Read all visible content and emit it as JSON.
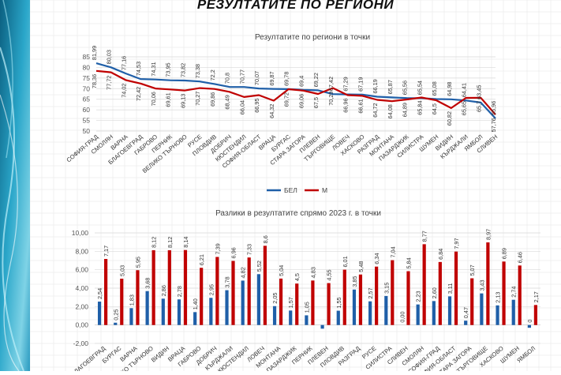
{
  "page": {
    "title": "РЕЗУЛТАТИТЕ ПО РЕГИОНИ"
  },
  "colors": {
    "bel": "#1f5fa8",
    "m": "#c00000",
    "panel_dark": "#0a6a8a",
    "panel_light": "#5fc6de"
  },
  "chart_data": [
    {
      "type": "line",
      "title": "Резултатите по региони в точки",
      "xlabel": "",
      "ylabel": "",
      "ylim": [
        50,
        85
      ],
      "yticks": [
        50,
        55,
        60,
        65,
        70,
        75,
        80,
        85
      ],
      "grid": true,
      "legend": "bottom",
      "categories": [
        "СОФИЯ-ГРАД",
        "СМОЛЯН",
        "ВАРНА",
        "БЛАГОЕВГРАД",
        "ГАБРОВО",
        "ПЕРНИК",
        "ВЕЛИКО ТЪРНОВО",
        "РУСЕ",
        "ПЛОВДИВ",
        "ДОБРИЧ",
        "КЮСТЕНДИЛ",
        "СОФИЯ-ОБЛАСТ",
        "ВРАЦА",
        "БУРГАС",
        "СТАРА ЗАГОРА",
        "ПЛЕВЕН",
        "ТЪРГОВИЩЕ",
        "ЛОВЕЧ",
        "ХАСКОВО",
        "РАЗГРАД",
        "МОНТАНА",
        "ПАЗАРДЖИК",
        "СИЛИСТРА",
        "ШУМЕН",
        "ВИДИН",
        "КЪРДЖАЛИ",
        "ЯМБОЛ",
        "СЛИВЕН"
      ],
      "series": [
        {
          "name": "БЕЛ",
          "values": [
            81.99,
            80.03,
            77.16,
            74.53,
            74.31,
            73.95,
            73.82,
            73.38,
            72.2,
            70.8,
            70.77,
            70.07,
            69.87,
            69.78,
            69.4,
            69.22,
            67.42,
            67.29,
            67.19,
            66.19,
            65.87,
            65.56,
            65.54,
            65.08,
            64.98,
            64.41,
            63.45,
            55.96
          ]
        },
        {
          "name": "М",
          "values": [
            78.36,
            77.72,
            74.02,
            72.42,
            70.06,
            69.61,
            69.13,
            70.27,
            69.86,
            68.49,
            66.04,
            66.95,
            64.32,
            69.72,
            69.06,
            67.5,
            70.29,
            66.96,
            66.61,
            64.72,
            64.08,
            64.89,
            65.84,
            64.5,
            60.82,
            65.65,
            65.7,
            57.76
          ]
        }
      ]
    },
    {
      "type": "bar",
      "title": "Разлики в резултатите спрямо 2023 г. в точки",
      "xlabel": "",
      "ylabel": "",
      "ylim": [
        -2,
        10
      ],
      "yticks": [
        "-2,00",
        "0,00",
        "2,00",
        "4,00",
        "6,00",
        "8,00",
        "10,00"
      ],
      "grid": true,
      "categories": [
        "БЛАГОЕВГРАД",
        "БУРГАС",
        "ВАРНА",
        "ВЕЛИКО ТЪРНОВО",
        "ВИДИН",
        "ВРАЦА",
        "ГАБРОВО",
        "ДОБРИЧ",
        "КЪРДЖАЛИ",
        "КЮСТЕНДИЛ",
        "ЛОВЕЧ",
        "МОНТАНА",
        "ПАЗАРДЖИК",
        "ПЕРНИК",
        "ПЛЕВЕН",
        "ПЛОВДИВ",
        "РАЗГРАД",
        "РУСЕ",
        "СИЛИСТРА",
        "СЛИВЕН",
        "СМОЛЯН",
        "СОФИЯ-ГРАД",
        "СОФИЯ-ОБЛАСТ",
        "СТАРА ЗАГОРА",
        "ТЪРГОВИЩЕ",
        "ХАСКОВО",
        "ШУМЕН",
        "ЯМБОЛ"
      ],
      "series": [
        {
          "name": "БЕЛ",
          "values": [
            2.54,
            0.25,
            1.83,
            3.68,
            2.86,
            2.78,
            1.4,
            2.95,
            3.78,
            4.82,
            5.52,
            2.05,
            1.57,
            1.05,
            -0.4,
            1.55,
            3.85,
            2.57,
            3.15,
            0.0,
            2.23,
            2.6,
            3.11,
            0.47,
            3.43,
            2.13,
            2.74,
            -0.3
          ],
          "labels": [
            "2,54",
            "0,25",
            "1,83",
            "3,68",
            "2,86",
            "2,78",
            "1,40",
            "2,95",
            "3,78",
            "4,82",
            "5,52",
            "2,05",
            "1,57",
            "1,05",
            "",
            "1,55",
            "3,85",
            "2,57",
            "3,15",
            "0,00",
            "2,23",
            "2,60",
            "3,11",
            "0,47",
            "3,43",
            "2,13",
            "2,74",
            "0"
          ]
        },
        {
          "name": "М",
          "values": [
            7.17,
            5.03,
            5.95,
            8.12,
            8.12,
            8.14,
            6.21,
            7.39,
            6.96,
            7.33,
            8.6,
            5.04,
            4.5,
            4.83,
            4.55,
            6.01,
            5.48,
            6.34,
            7.04,
            5.84,
            8.77,
            6.84,
            7.97,
            5.07,
            8.97,
            6.89,
            6.46,
            2.17
          ],
          "labels": [
            "7,17",
            "5,03",
            "5,95",
            "8,12",
            "8,12",
            "8,14",
            "6,21",
            "7,39",
            "6,96",
            "7,33",
            "8,6",
            "5,04",
            "4,5",
            "4,83",
            "4,55",
            "6,01",
            "5,48",
            "6,34",
            "7,04",
            "5,84",
            "8,77",
            "6,84",
            "7,97",
            "5,07",
            "8,97",
            "6,89",
            "6,46",
            "2,17"
          ]
        }
      ]
    }
  ]
}
